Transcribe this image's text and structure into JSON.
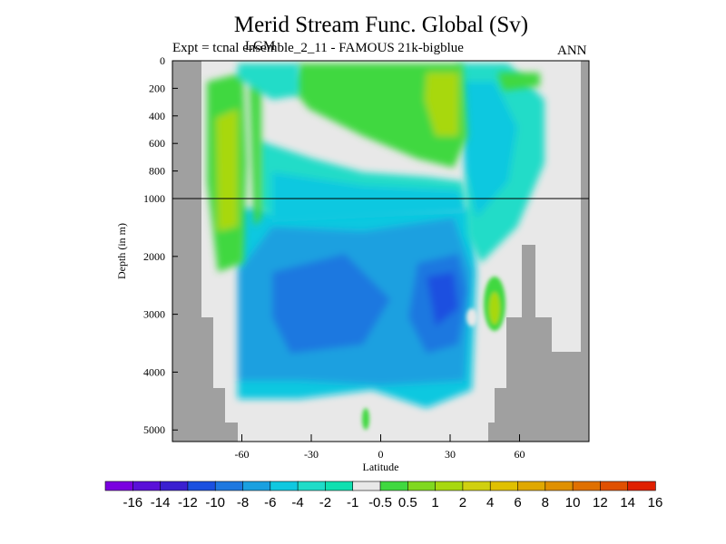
{
  "title": "Merid Stream Func. Global (Sv)",
  "experiment_label": "Expt = tcnal  ensemble_2_11 - FAMOUS 21k-bigblue",
  "overlay_label": "LGM",
  "period_label": "ANN",
  "chart_data": {
    "type": "heatmap",
    "title": "Merid Stream Func. Global (Sv)",
    "xlabel": "Latitude",
    "ylabel": "Depth (in m)",
    "xlim": [
      -90,
      90
    ],
    "ylim_upper": [
      1000,
      0
    ],
    "ylim_lower": [
      5200,
      1000
    ],
    "x_ticks": [
      "-60",
      "-30",
      "0",
      "30",
      "60"
    ],
    "x_tick_values": [
      -60,
      -30,
      0,
      30,
      60
    ],
    "y_ticks_upper": [
      "0",
      "200",
      "400",
      "600",
      "800",
      "1000"
    ],
    "y_tick_values_upper": [
      0,
      200,
      400,
      600,
      800,
      1000
    ],
    "y_ticks_lower": [
      "2000",
      "3000",
      "4000",
      "5000"
    ],
    "y_tick_values_lower": [
      2000,
      3000,
      4000,
      5000
    ],
    "colorbar": {
      "labels": [
        "-16",
        "-14",
        "-12",
        "-10",
        "-8",
        "-6",
        "-4",
        "-2",
        "-1",
        "-0.5",
        "0.5",
        "1",
        "2",
        "4",
        "6",
        "8",
        "10",
        "12",
        "14",
        "16"
      ],
      "colors": [
        "#7a00e0",
        "#5a10d8",
        "#3a20d0",
        "#1a50e0",
        "#1e78e0",
        "#1aa0e0",
        "#10c8e0",
        "#20dcc8",
        "#10e0b0",
        "#e8e8e8",
        "#40d840",
        "#80d820",
        "#a8d810",
        "#d0d010",
        "#e0c000",
        "#e0a800",
        "#e09000",
        "#e07000",
        "#e05000",
        "#e02000"
      ]
    },
    "land_color": "#a0a0a0",
    "no_data_color": "#e8e8e8"
  }
}
